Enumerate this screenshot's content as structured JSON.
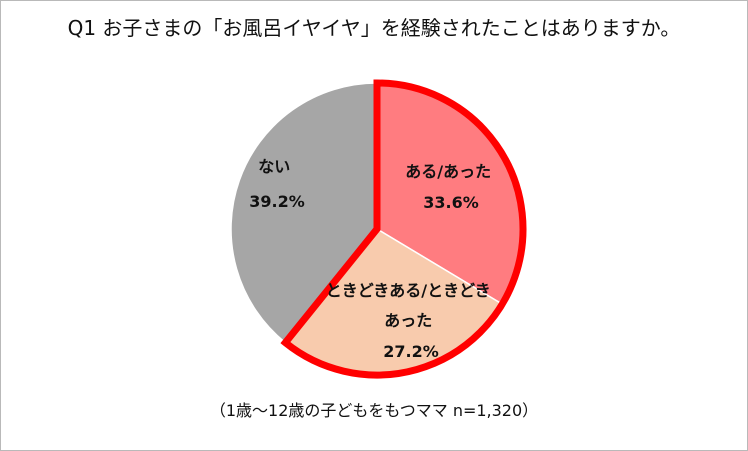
{
  "chart_data": {
    "type": "pie",
    "title": "Q1 お子さまの「お風呂イヤイヤ」を経験されたことはありますか。",
    "note": "（1歳～12歳の子どもをもつママ n=1,320）",
    "slices": [
      {
        "label": "ある/あった",
        "value": 33.6,
        "value_text": "33.6%",
        "color": "#ff7c80",
        "highlighted": true
      },
      {
        "label": "ときどきある/ときどきあった",
        "value": 27.2,
        "value_text": "27.2%",
        "color": "#f8cbad",
        "highlighted": true
      },
      {
        "label": "ない",
        "value": 39.2,
        "value_text": "39.2%",
        "color": "#a6a6a6",
        "highlighted": false
      }
    ],
    "highlight_color": "#ff0000"
  }
}
